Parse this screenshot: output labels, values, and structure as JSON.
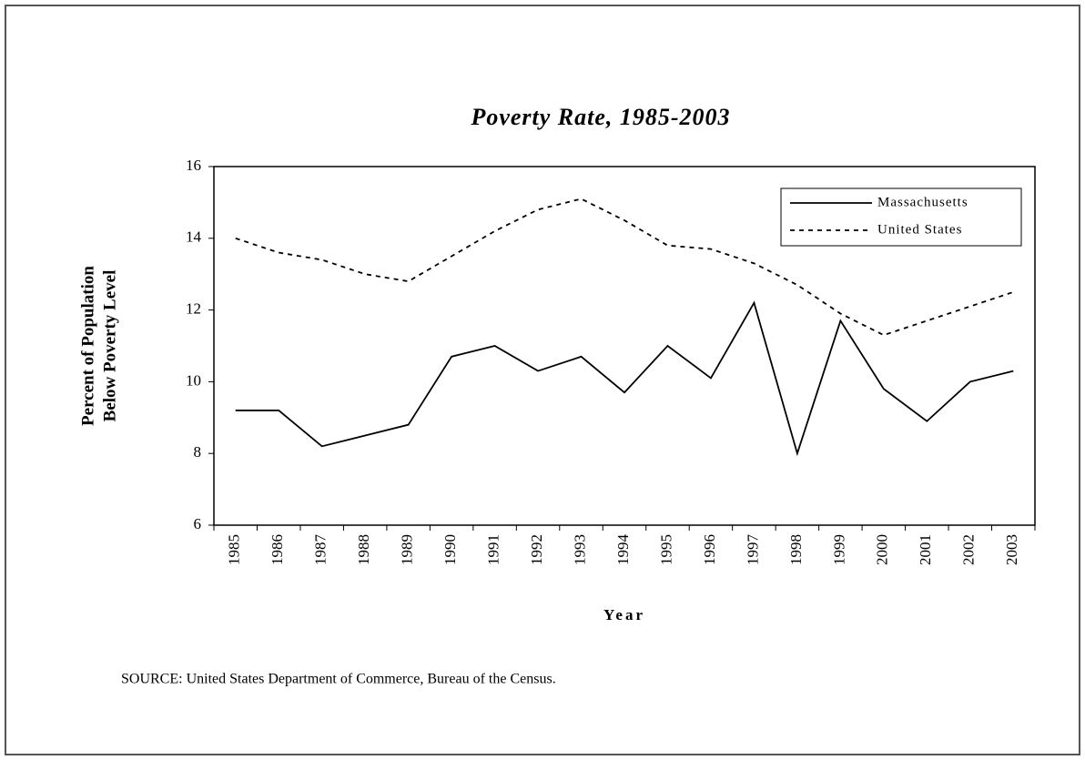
{
  "chart_data": {
    "type": "line",
    "title": "Poverty Rate, 1985-2003",
    "x_label": "Year",
    "y_label": [
      "Percent of Population",
      "Below Poverty Level"
    ],
    "source": "SOURCE:  United States Department of Commerce, Bureau of the Census.",
    "categories": [
      "1985",
      "1986",
      "1987",
      "1988",
      "1989",
      "1990",
      "1991",
      "1992",
      "1993",
      "1994",
      "1995",
      "1996",
      "1997",
      "1998",
      "1999",
      "2000",
      "2001",
      "2002",
      "2003"
    ],
    "series": [
      {
        "name": "Massachusetts",
        "color": "#000000",
        "dash": "solid",
        "values": [
          9.2,
          9.2,
          8.2,
          8.5,
          8.8,
          10.7,
          11.0,
          10.3,
          10.7,
          9.7,
          11.0,
          10.1,
          12.2,
          8.0,
          11.7,
          9.8,
          8.9,
          10.0,
          10.3
        ]
      },
      {
        "name": "United States",
        "color": "#000000",
        "dash": "dotted",
        "values": [
          14.0,
          13.6,
          13.4,
          13.0,
          12.8,
          13.5,
          14.2,
          14.8,
          15.1,
          14.5,
          13.8,
          13.7,
          13.3,
          12.7,
          11.9,
          11.3,
          11.7,
          12.1,
          12.5
        ]
      }
    ],
    "ylim": [
      6,
      16
    ],
    "yticks": [
      6,
      8,
      10,
      12,
      14,
      16
    ],
    "grid": false,
    "legend": "upper right"
  }
}
